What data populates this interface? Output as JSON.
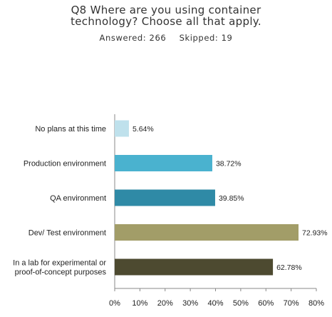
{
  "chart_data": {
    "type": "bar",
    "orientation": "horizontal",
    "title_lines": [
      "Q8 Where are you using container",
      "technology? Choose all that apply."
    ],
    "answered_label": "Answered: 266",
    "skipped_label": "Skipped: 19",
    "categories": [
      [
        "No plans at this time"
      ],
      [
        "Production environment"
      ],
      [
        "QA environment"
      ],
      [
        "Dev/ Test environment"
      ],
      [
        "In a lab for experimental or",
        "proof-of-concept purposes"
      ]
    ],
    "values": [
      5.64,
      38.72,
      39.85,
      72.93,
      62.78
    ],
    "value_labels": [
      "5.64%",
      "38.72%",
      "39.85%",
      "72.93%",
      "62.78%"
    ],
    "colors": [
      "#bfe1ec",
      "#4ab2cf",
      "#2f8aa6",
      "#a29d68",
      "#4d4a30"
    ],
    "xlim": [
      0,
      80
    ],
    "xticks": [
      0,
      10,
      20,
      30,
      40,
      50,
      60,
      70,
      80
    ],
    "xtick_labels": [
      "0%",
      "10%",
      "20%",
      "30%",
      "40%",
      "50%",
      "60%",
      "70%",
      "80%"
    ],
    "grid": false,
    "legend": "none"
  }
}
